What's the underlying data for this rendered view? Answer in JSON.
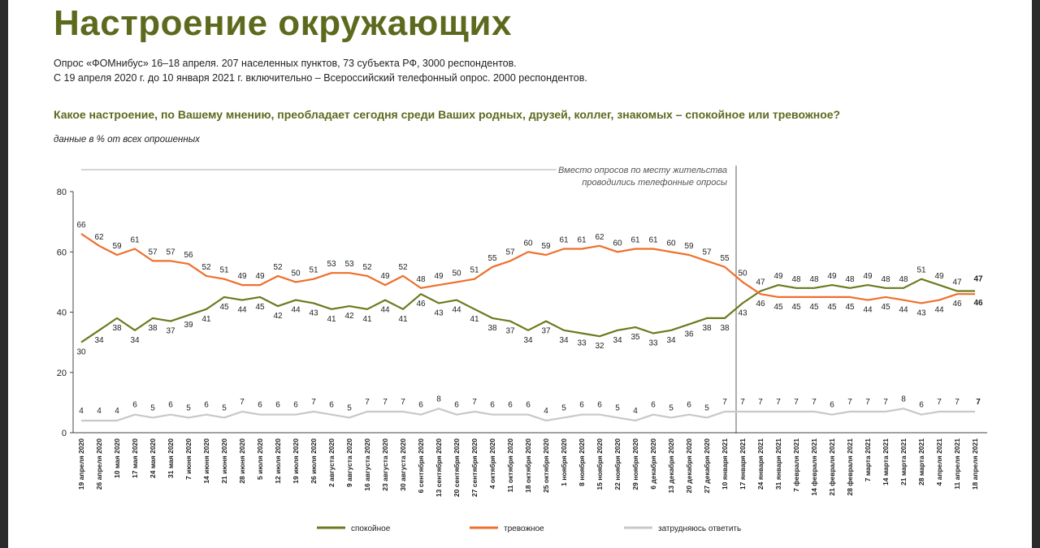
{
  "header": {
    "title": "Настроение окружающих",
    "subtitle1": "Опрос «ФОМнибус» 16–18 апреля. 207 населенных пунктов, 73 субъекта РФ, 3000 респондентов.",
    "subtitle2": "С 19 апреля 2020 г. до 10 января 2021 г. включительно – Всероссийский телефонный опрос. 2000 респондентов.",
    "question": "Какое настроение, по Вашему мнению, преобладает сегодня среди Ваших родных, друзей, коллег, знакомых – спокойное или тревожное?",
    "unit": "данные в % от всех опрошенных"
  },
  "chart_data": {
    "type": "line",
    "ylim": [
      0,
      80
    ],
    "yticks": [
      0,
      20,
      40,
      60,
      80
    ],
    "annotation": [
      "Вместо опросов по месту жительства",
      "проводились телефонные опросы"
    ],
    "x": [
      "19 апреля 2020",
      "26 апреля 2020",
      "10 мая 2020",
      "17 мая 2020",
      "24 мая 2020",
      "31 мая 2020",
      "7 июня 2020",
      "14 июня 2020",
      "21 июня 2020",
      "28 июня 2020",
      "5 июля 2020",
      "12 июля 2020",
      "19 июля 2020",
      "26 июля 2020",
      "2 августа 2020",
      "9 августа 2020",
      "16 августа 2020",
      "23 августа 2020",
      "30 августа 2020",
      "6 сентября 2020",
      "13 сентября 2020",
      "20 сентября 2020",
      "27 сентября 2020",
      "4 октября 2020",
      "11 октября 2020",
      "18 октября 2020",
      "25 октября 2020",
      "1 ноября 2020",
      "8 ноября 2020",
      "15 ноября 2020",
      "22 ноября 2020",
      "29 ноября 2020",
      "6 декабря 2020",
      "13 декабря 2020",
      "20 декабря 2020",
      "27 декабря 2020",
      "10 января 2021",
      "17 января 2021",
      "24 января 2021",
      "31 января 2021",
      "7 февраля 2021",
      "14 февраля 2021",
      "21 февраля 2021",
      "28 февраля 2021",
      "7 марта 2021",
      "14 марта 2021",
      "21 марта 2021",
      "28 марта 2021",
      "4 апреля 2021",
      "11 апреля 2021",
      "18 апреля 2021"
    ],
    "series": [
      {
        "name": "спокойное",
        "color": "#6b7a1e",
        "values": [
          30,
          34,
          38,
          34,
          38,
          37,
          39,
          41,
          45,
          44,
          45,
          42,
          44,
          43,
          41,
          42,
          41,
          44,
          41,
          46,
          43,
          44,
          41,
          38,
          37,
          34,
          37,
          34,
          33,
          32,
          34,
          35,
          33,
          34,
          36,
          38,
          38,
          43,
          47,
          49,
          48,
          48,
          49,
          48,
          49,
          48,
          48,
          51,
          49,
          47,
          47
        ]
      },
      {
        "name": "тревожное",
        "color": "#ef6f2b",
        "values": [
          66,
          62,
          59,
          61,
          57,
          57,
          56,
          52,
          51,
          49,
          49,
          52,
          50,
          51,
          53,
          53,
          52,
          49,
          52,
          48,
          49,
          50,
          51,
          55,
          57,
          60,
          59,
          61,
          61,
          62,
          60,
          61,
          61,
          60,
          59,
          57,
          55,
          50,
          46,
          45,
          45,
          45,
          45,
          45,
          44,
          45,
          44,
          43,
          44,
          46,
          46
        ]
      },
      {
        "name": "затрудняюсь ответить",
        "color": "#c8c8c8",
        "values": [
          4,
          4,
          4,
          6,
          5,
          6,
          5,
          6,
          5,
          7,
          6,
          6,
          6,
          7,
          6,
          5,
          7,
          7,
          7,
          6,
          8,
          6,
          7,
          6,
          6,
          6,
          4,
          5,
          6,
          6,
          5,
          4,
          6,
          5,
          6,
          5,
          7,
          7,
          7,
          7,
          7,
          7,
          6,
          7,
          7,
          7,
          8,
          6,
          7,
          7,
          7
        ]
      }
    ]
  }
}
